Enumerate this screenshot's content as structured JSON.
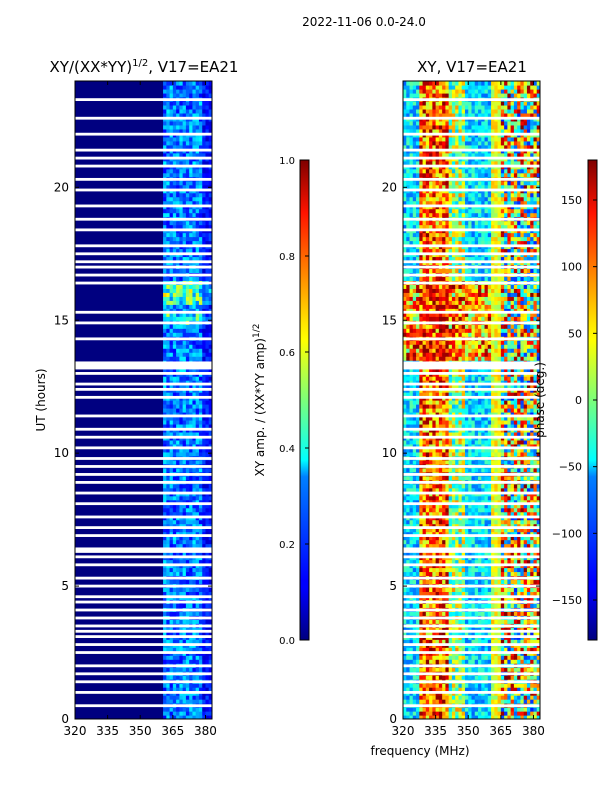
{
  "figure_title": "2022-11-06 0.0-24.0",
  "shared_xlabel": "frequency (MHz)",
  "colors": {
    "background": "#000080",
    "gap": "#ffffff",
    "axis": "#000000"
  },
  "chart_data": [
    {
      "type": "heatmap",
      "title_html": "XY/(XX*YY)<sup>1/2</sup>, V17=EA21",
      "title_plain": "XY/(XX*YY)1/2, V17=EA21",
      "xlabel": "",
      "ylabel": "UT (hours)",
      "xlim": [
        320,
        383
      ],
      "ylim": [
        0,
        24
      ],
      "xticks": [
        320,
        335,
        350,
        365,
        380
      ],
      "yticks": [
        0,
        5,
        10,
        15,
        20
      ],
      "colormap": "jet",
      "cbar_label": "XY amp. / (XX*YY amp)^1/2",
      "cbar_range": [
        0.0,
        1.0
      ],
      "cbar_ticks": [
        "0.0",
        "0.2",
        "0.4",
        "0.6",
        "0.8",
        "1.0"
      ],
      "cbar_tick_values": [
        0.0,
        0.2,
        0.4,
        0.6,
        0.8,
        1.0
      ],
      "gap_rows_ut": [
        23.3,
        22.6,
        22.0,
        21.4,
        21.1,
        20.8,
        20.3,
        19.9,
        19.3,
        18.8,
        18.4,
        17.8,
        17.5,
        17.2,
        17.0,
        16.7,
        16.4,
        15.3,
        14.9,
        14.3,
        13.3,
        13.0,
        12.6,
        12.4,
        12.1,
        11.4,
        10.9,
        10.6,
        10.2,
        9.8,
        9.5,
        9.2,
        8.9,
        8.5,
        8.1,
        7.6,
        7.2,
        6.9,
        6.4,
        6.1,
        5.8,
        5.3,
        5.0,
        4.6,
        4.4,
        4.1,
        3.8,
        3.5,
        3.3,
        3.1,
        2.8,
        2.5,
        2.0,
        1.7,
        1.4,
        1.0,
        0.5
      ]
    },
    {
      "type": "heatmap",
      "title_html": "XY, V17=EA21",
      "title_plain": "XY, V17=EA21",
      "xlabel": "frequency (MHz)",
      "ylabel": "",
      "xlim": [
        320,
        383
      ],
      "ylim": [
        0,
        24
      ],
      "xticks": [
        320,
        335,
        350,
        365,
        380
      ],
      "yticks": [
        0,
        5,
        10,
        15,
        20
      ],
      "colormap": "jet",
      "cbar_label": "phase (deg.)",
      "cbar_range": [
        -180,
        180
      ],
      "cbar_ticks": [
        "−150",
        "−100",
        "−50",
        "0",
        "50",
        "100",
        "150"
      ],
      "cbar_tick_values": [
        -150,
        -100,
        -50,
        0,
        50,
        100,
        150
      ],
      "gap_rows_ut": [
        23.3,
        22.6,
        22.0,
        21.4,
        21.1,
        20.8,
        20.3,
        19.9,
        19.3,
        18.8,
        18.4,
        17.8,
        17.5,
        17.2,
        17.0,
        16.7,
        16.4,
        15.3,
        14.9,
        14.3,
        13.3,
        13.0,
        12.6,
        12.4,
        12.1,
        11.4,
        10.9,
        10.6,
        10.2,
        9.8,
        9.5,
        9.2,
        8.9,
        8.5,
        8.1,
        7.6,
        7.2,
        6.9,
        6.4,
        6.1,
        5.8,
        5.3,
        5.0,
        4.6,
        4.4,
        4.1,
        3.8,
        3.5,
        3.3,
        3.1,
        2.8,
        2.5,
        2.0,
        1.7,
        1.4,
        1.0,
        0.5
      ]
    }
  ]
}
